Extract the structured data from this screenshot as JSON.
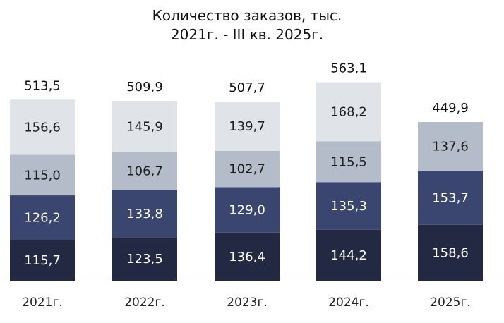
{
  "chart_data": {
    "type": "bar",
    "stacked": true,
    "title_lines": [
      "Количество заказов, тыс.",
      "2021г. - III кв. 2025г."
    ],
    "categories": [
      "2021г.",
      "2022г.",
      "2023г.",
      "2024г.",
      "2025г."
    ],
    "series": [
      {
        "values": [
          115.7,
          123.5,
          136.4,
          144.2,
          158.6
        ],
        "labels": [
          "115,7",
          "123,5",
          "136,4",
          "144,2",
          "158,6"
        ],
        "color": "#232843",
        "label_color": "#ffffff"
      },
      {
        "values": [
          126.2,
          133.8,
          129.0,
          135.3,
          153.7
        ],
        "labels": [
          "126,2",
          "133,8",
          "129,0",
          "135,3",
          "153,7"
        ],
        "color": "#3b4670",
        "label_color": "#ffffff"
      },
      {
        "values": [
          115.0,
          106.7,
          102.7,
          115.5,
          137.6
        ],
        "labels": [
          "115,0",
          "106,7",
          "102,7",
          "115,5",
          "137,6"
        ],
        "color": "#b5bcc9",
        "label_color": "#1c1c1c"
      },
      {
        "values": [
          156.6,
          145.9,
          139.7,
          168.2,
          null
        ],
        "labels": [
          "156,6",
          "145,9",
          "139,7",
          "168,2",
          null
        ],
        "color": "#e0e3e8",
        "label_color": "#1c1c1c"
      }
    ],
    "totals": [
      "513,5",
      "509,9",
      "507,7",
      "563,1",
      "449,9"
    ],
    "ylim": [
      0,
      600
    ],
    "axis_color": "#c8c8c8",
    "legend": false,
    "grid": false
  }
}
